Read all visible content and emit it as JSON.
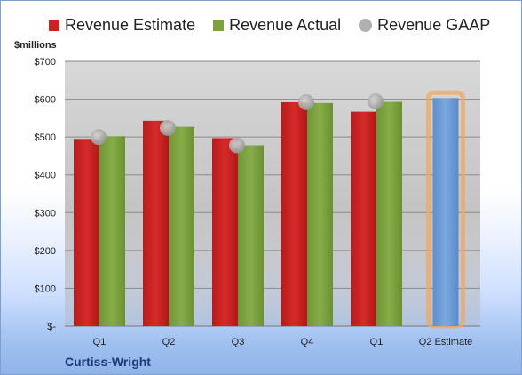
{
  "legend": {
    "estimate": "Revenue Estimate",
    "actual": "Revenue Actual",
    "gaap": "Revenue GAAP"
  },
  "ylabel": "$millions",
  "company": "Curtiss-Wright",
  "colors": {
    "estimate": "#cc2222",
    "actual": "#7ba23f",
    "gaap": "#b0b0b0",
    "q2_estimate": "#6f9fd8",
    "highlight": "#f0a860"
  },
  "chart_data": {
    "type": "bar",
    "categories": [
      "Q1",
      "Q2",
      "Q3",
      "Q4",
      "Q1",
      "Q2 Estimate"
    ],
    "ytick_labels": [
      "$-",
      "$100",
      "$200",
      "$300",
      "$400",
      "$500",
      "$600",
      "$700"
    ],
    "ylim": [
      0,
      700
    ],
    "series": [
      {
        "name": "Revenue Estimate",
        "values": [
          495,
          543,
          497,
          592,
          567,
          null
        ]
      },
      {
        "name": "Revenue Actual",
        "values": [
          502,
          527,
          478,
          590,
          593,
          603
        ]
      },
      {
        "name": "Revenue GAAP",
        "values": [
          500,
          524,
          478,
          592,
          594,
          null
        ]
      }
    ],
    "grid": true,
    "legend_position": "top"
  }
}
